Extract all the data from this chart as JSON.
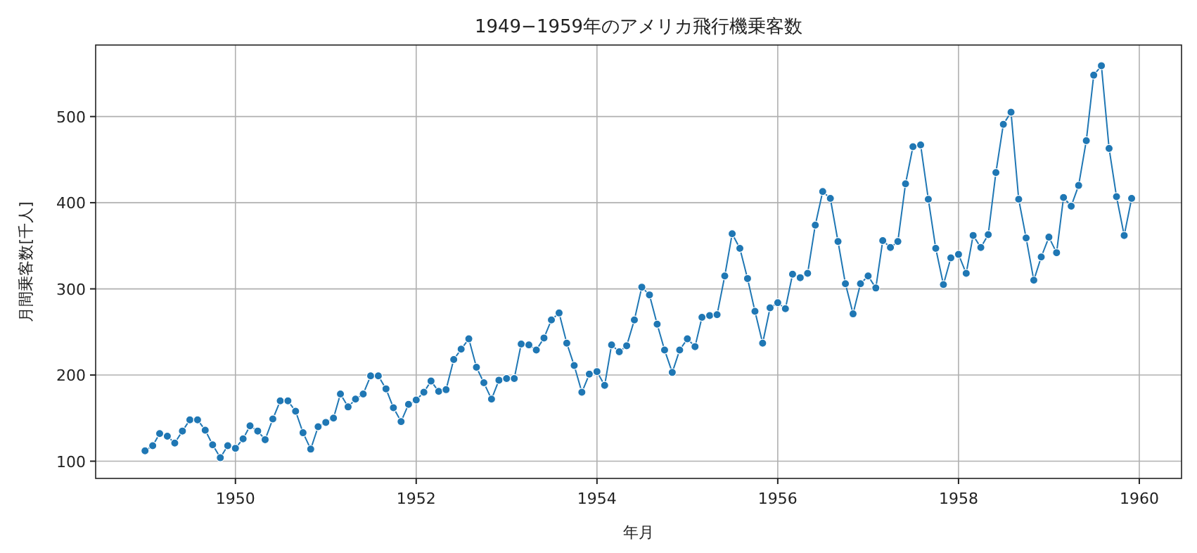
{
  "chart_data": {
    "type": "line",
    "title": "1949−1959年のアメリカ飛行機乗客数",
    "xlabel": "年月",
    "ylabel": "月間乗客数[千人]",
    "x": [
      "1949-01",
      "1949-02",
      "1949-03",
      "1949-04",
      "1949-05",
      "1949-06",
      "1949-07",
      "1949-08",
      "1949-09",
      "1949-10",
      "1949-11",
      "1949-12",
      "1950-01",
      "1950-02",
      "1950-03",
      "1950-04",
      "1950-05",
      "1950-06",
      "1950-07",
      "1950-08",
      "1950-09",
      "1950-10",
      "1950-11",
      "1950-12",
      "1951-01",
      "1951-02",
      "1951-03",
      "1951-04",
      "1951-05",
      "1951-06",
      "1951-07",
      "1951-08",
      "1951-09",
      "1951-10",
      "1951-11",
      "1951-12",
      "1952-01",
      "1952-02",
      "1952-03",
      "1952-04",
      "1952-05",
      "1952-06",
      "1952-07",
      "1952-08",
      "1952-09",
      "1952-10",
      "1952-11",
      "1952-12",
      "1953-01",
      "1953-02",
      "1953-03",
      "1953-04",
      "1953-05",
      "1953-06",
      "1953-07",
      "1953-08",
      "1953-09",
      "1953-10",
      "1953-11",
      "1953-12",
      "1954-01",
      "1954-02",
      "1954-03",
      "1954-04",
      "1954-05",
      "1954-06",
      "1954-07",
      "1954-08",
      "1954-09",
      "1954-10",
      "1954-11",
      "1954-12",
      "1955-01",
      "1955-02",
      "1955-03",
      "1955-04",
      "1955-05",
      "1955-06",
      "1955-07",
      "1955-08",
      "1955-09",
      "1955-10",
      "1955-11",
      "1955-12",
      "1956-01",
      "1956-02",
      "1956-03",
      "1956-04",
      "1956-05",
      "1956-06",
      "1956-07",
      "1956-08",
      "1956-09",
      "1956-10",
      "1956-11",
      "1956-12",
      "1957-01",
      "1957-02",
      "1957-03",
      "1957-04",
      "1957-05",
      "1957-06",
      "1957-07",
      "1957-08",
      "1957-09",
      "1957-10",
      "1957-11",
      "1957-12",
      "1958-01",
      "1958-02",
      "1958-03",
      "1958-04",
      "1958-05",
      "1958-06",
      "1958-07",
      "1958-08",
      "1958-09",
      "1958-10",
      "1958-11",
      "1958-12",
      "1959-01",
      "1959-02",
      "1959-03",
      "1959-04",
      "1959-05",
      "1959-06",
      "1959-07",
      "1959-08",
      "1959-09",
      "1959-10",
      "1959-11",
      "1959-12"
    ],
    "series": [
      {
        "color": "#1f77b4",
        "values": [
          112,
          118,
          132,
          129,
          121,
          135,
          148,
          148,
          136,
          119,
          104,
          118,
          115,
          126,
          141,
          135,
          125,
          149,
          170,
          170,
          158,
          133,
          114,
          140,
          145,
          150,
          178,
          163,
          172,
          178,
          199,
          199,
          184,
          162,
          146,
          166,
          171,
          180,
          193,
          181,
          183,
          218,
          230,
          242,
          209,
          191,
          172,
          194,
          196,
          196,
          236,
          235,
          229,
          243,
          264,
          272,
          237,
          211,
          180,
          201,
          204,
          188,
          235,
          227,
          234,
          264,
          302,
          293,
          259,
          229,
          203,
          229,
          242,
          233,
          267,
          269,
          270,
          315,
          364,
          347,
          312,
          274,
          237,
          278,
          284,
          277,
          317,
          313,
          318,
          374,
          413,
          405,
          355,
          306,
          271,
          306,
          315,
          301,
          356,
          348,
          355,
          422,
          465,
          467,
          404,
          347,
          305,
          336,
          340,
          318,
          362,
          348,
          363,
          435,
          491,
          505,
          404,
          359,
          310,
          337,
          360,
          342,
          406,
          396,
          420,
          472,
          548,
          559,
          463,
          407,
          362,
          405
        ]
      }
    ],
    "xlim": [
      "1948-06-15",
      "1960-06-20"
    ],
    "xticks": [
      {
        "value": "1950-01-01",
        "label": "1950"
      },
      {
        "value": "1952-01-01",
        "label": "1952"
      },
      {
        "value": "1954-01-01",
        "label": "1954"
      },
      {
        "value": "1956-01-01",
        "label": "1956"
      },
      {
        "value": "1958-01-01",
        "label": "1958"
      },
      {
        "value": "1960-01-01",
        "label": "1960"
      }
    ],
    "ylim": [
      80,
      583
    ],
    "yticks": [
      100,
      200,
      300,
      400,
      500
    ],
    "grid": true,
    "marker": "circle",
    "line_style": "solid"
  }
}
